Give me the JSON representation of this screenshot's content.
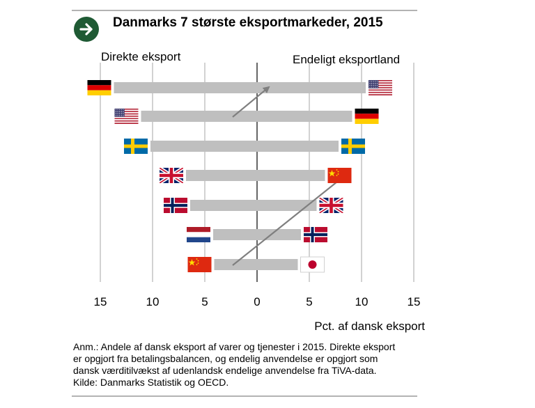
{
  "title": "Danmarks 7 største eksportmarkeder, 2015",
  "header": {
    "left_label": "Direkte eksport",
    "right_label": "Endeligt eksportland",
    "icon": "arrow-right-circle-icon",
    "icon_color": "#1f5a34"
  },
  "chart_data": {
    "type": "bar",
    "orientation": "horizontal-diverging",
    "title": "Danmarks 7 største eksportmarkeder, 2015",
    "xlabel": "Pct. af dansk eksport",
    "xlim": [
      -15,
      15
    ],
    "xticks": [
      -15,
      -10,
      -5,
      0,
      5,
      10,
      15
    ],
    "xtick_labels": [
      "15",
      "10",
      "5",
      "0",
      "5",
      "10",
      "15"
    ],
    "grid": true,
    "bar_color": "#bfbfbf",
    "series": [
      {
        "name": "Direkte eksport",
        "countries": [
          "Tyskland",
          "USA",
          "Sverige",
          "Storbritannien",
          "Norge",
          "Holland",
          "Kina"
        ],
        "flags": [
          "flag-germany",
          "flag-usa",
          "flag-sweden",
          "flag-uk",
          "flag-norway",
          "flag-netherlands",
          "flag-china"
        ],
        "values": [
          13.7,
          11.1,
          10.2,
          6.8,
          6.4,
          4.2,
          4.1
        ]
      },
      {
        "name": "Endeligt eksportland",
        "countries": [
          "USA",
          "Tyskland",
          "Sverige",
          "Kina",
          "Storbritannien",
          "Norge",
          "Japan"
        ],
        "flags": [
          "flag-usa",
          "flag-germany",
          "flag-sweden",
          "flag-china",
          "flag-uk",
          "flag-norway",
          "flag-japan"
        ],
        "values": [
          10.4,
          9.1,
          7.8,
          6.5,
          5.7,
          4.2,
          3.9
        ]
      }
    ],
    "arrows": [
      {
        "from": "USA",
        "from_rank": 2,
        "to_rank": 1
      },
      {
        "from": "Kina",
        "from_rank": 7,
        "to_rank": 4
      }
    ]
  },
  "note": {
    "line1": "Anm.: Andele af dansk eksport af varer og tjenester i 2015. Direkte eksport",
    "line2": "er opgjort fra betalingsbalancen, og endelig anvendelse er opgjort som",
    "line3": "dansk værditilvækst af udenlandsk endelige anvendelse fra TiVA-data.",
    "line4": "Kilde: Danmarks Statistik og OECD."
  }
}
